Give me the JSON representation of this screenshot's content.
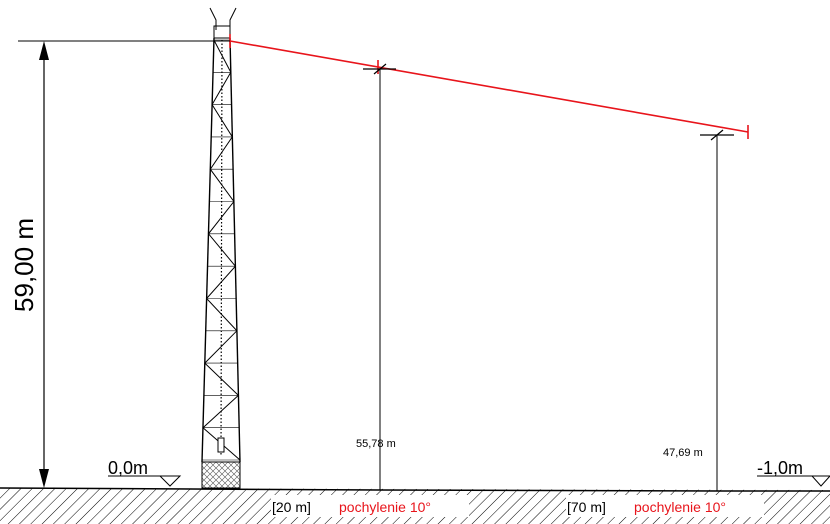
{
  "colors": {
    "ink": "#000000",
    "antenna_line": "#e8141b",
    "ground_hatch": "#000000",
    "background": "#ffffff"
  },
  "height_dimension": "59,00 m",
  "levels": {
    "left": "0,0m",
    "right": "-1,0m"
  },
  "height_marks": [
    {
      "value": "55,78 m"
    },
    {
      "value": "47,69 m"
    }
  ],
  "segments": [
    {
      "distance": "[20 m]",
      "slope": "pochylenie 10°"
    },
    {
      "distance": "[70 m]",
      "slope": "pochylenie 10°"
    }
  ],
  "icons": {
    "level_marker": "triangle-level-icon",
    "tower": "lattice-tower-icon"
  }
}
